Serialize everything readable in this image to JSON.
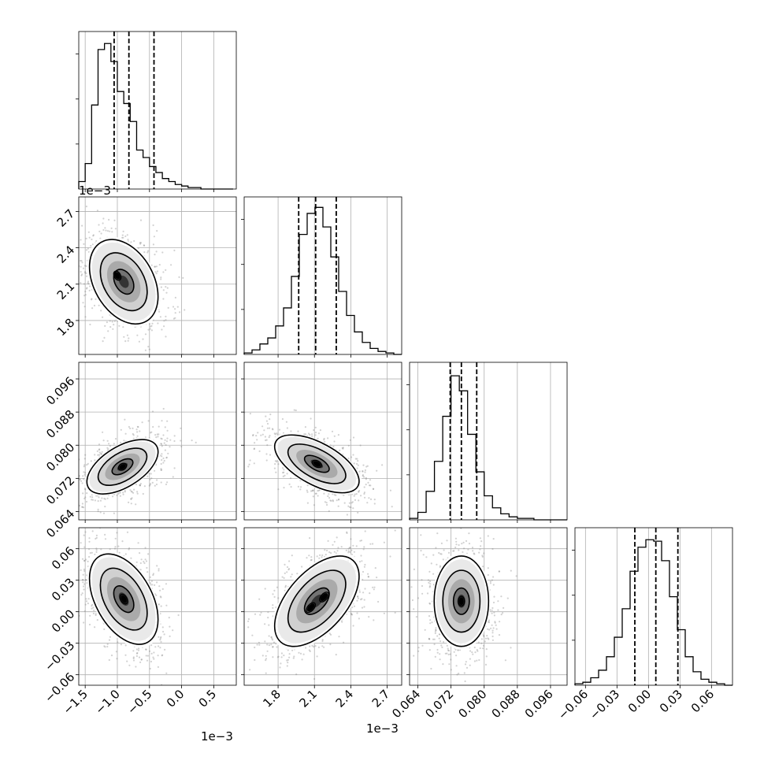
{
  "chart_data": {
    "type": "corner",
    "title": "",
    "grid": true,
    "histogram_color": "#000000",
    "scatter_color": "#7f7f7f",
    "quantiles": [
      0.16,
      0.5,
      0.84
    ],
    "parameters": [
      {
        "index": 0,
        "label": "",
        "offset_text": "1e−3",
        "range": [
          -1.6,
          0.85
        ],
        "ticks": [
          -1.5,
          -1.0,
          -0.5,
          0.0,
          0.5
        ],
        "tick_labels": [
          "−1.5",
          "−1.0",
          "−0.5",
          "0.0",
          "0.5"
        ],
        "quantile_values": [
          -1.05,
          -0.82,
          -0.43
        ],
        "hist_edges": [
          -1.6,
          -1.5,
          -1.4,
          -1.3,
          -1.2,
          -1.1,
          -1.0,
          -0.9,
          -0.8,
          -0.7,
          -0.6,
          -0.5,
          -0.4,
          -0.3,
          -0.2,
          -0.1,
          0.0,
          0.1,
          0.2,
          0.3,
          0.4,
          0.5,
          0.6,
          0.7,
          0.8
        ],
        "hist_counts": [
          0.05,
          0.17,
          0.56,
          0.93,
          0.97,
          0.85,
          0.65,
          0.57,
          0.45,
          0.26,
          0.21,
          0.15,
          0.11,
          0.07,
          0.05,
          0.03,
          0.02,
          0.01,
          0.01,
          0.0,
          0.0,
          0.0,
          0.0,
          0.0
        ]
      },
      {
        "index": 1,
        "label": "",
        "offset_text": "1e−3",
        "range": [
          1.52,
          2.82
        ],
        "ticks": [
          1.8,
          2.1,
          2.4,
          2.7
        ],
        "tick_labels": [
          "1.8",
          "2.1",
          "2.4",
          "2.7"
        ],
        "quantile_values": [
          1.97,
          2.11,
          2.28
        ],
        "hist_edges": [
          1.52,
          1.585,
          1.65,
          1.715,
          1.78,
          1.845,
          1.91,
          1.975,
          2.04,
          2.105,
          2.17,
          2.235,
          2.3,
          2.365,
          2.43,
          2.495,
          2.56,
          2.625,
          2.69,
          2.755,
          2.82
        ],
        "hist_counts": [
          0.01,
          0.03,
          0.07,
          0.11,
          0.19,
          0.31,
          0.52,
          0.8,
          0.94,
          0.98,
          0.85,
          0.65,
          0.42,
          0.26,
          0.15,
          0.08,
          0.04,
          0.02,
          0.01,
          0.0
        ]
      },
      {
        "index": 2,
        "label": "",
        "offset_text": "",
        "range": [
          0.062,
          0.1
        ],
        "ticks": [
          0.064,
          0.072,
          0.08,
          0.088,
          0.096
        ],
        "tick_labels": [
          "0.064",
          "0.072",
          "0.080",
          "0.088",
          "0.096"
        ],
        "quantile_values": [
          0.0718,
          0.0745,
          0.0782
        ],
        "hist_edges": [
          0.062,
          0.064,
          0.066,
          0.068,
          0.07,
          0.072,
          0.074,
          0.076,
          0.078,
          0.08,
          0.082,
          0.084,
          0.086,
          0.088,
          0.09,
          0.092,
          0.094,
          0.096,
          0.098,
          0.1
        ],
        "hist_counts": [
          0.01,
          0.05,
          0.19,
          0.39,
          0.69,
          0.96,
          0.86,
          0.57,
          0.32,
          0.16,
          0.08,
          0.04,
          0.02,
          0.01,
          0.01,
          0.0,
          0.0,
          0.0,
          0.0
        ]
      },
      {
        "index": 3,
        "label": "",
        "offset_text": "",
        "range": [
          -0.07,
          0.08
        ],
        "ticks": [
          -0.06,
          -0.03,
          0.0,
          0.03,
          0.06
        ],
        "tick_labels": [
          "−0.06",
          "−0.03",
          "0.00",
          "0.03",
          "0.06"
        ],
        "quantile_values": [
          -0.013,
          0.007,
          0.028
        ],
        "hist_edges": [
          -0.07,
          -0.0625,
          -0.055,
          -0.0475,
          -0.04,
          -0.0325,
          -0.025,
          -0.0175,
          -0.01,
          -0.0025,
          0.005,
          0.0125,
          0.02,
          0.0275,
          0.035,
          0.0425,
          0.05,
          0.0575,
          0.065,
          0.0725,
          0.08
        ],
        "hist_counts": [
          0.01,
          0.02,
          0.05,
          0.1,
          0.19,
          0.32,
          0.51,
          0.76,
          0.92,
          0.97,
          0.96,
          0.83,
          0.59,
          0.37,
          0.19,
          0.09,
          0.04,
          0.02,
          0.01,
          0.0
        ]
      }
    ],
    "pairs": [
      {
        "x": 0,
        "y": 1,
        "center": [
          -0.9,
          2.12
        ],
        "sd": [
          0.26,
          0.17
        ],
        "rho": -0.35,
        "peak_offsets": [
          [
            -0.1,
            0.05
          ]
        ]
      },
      {
        "x": 0,
        "y": 2,
        "center": [
          -0.92,
          0.0748
        ],
        "sd": [
          0.27,
          0.0032
        ],
        "rho": 0.55,
        "peak_offsets": [
          [
            0.0,
            0.0
          ]
        ]
      },
      {
        "x": 1,
        "y": 2,
        "center": [
          2.12,
          0.0755
        ],
        "sd": [
          0.17,
          0.0034
        ],
        "rho": -0.6,
        "peak_offsets": [
          [
            0.0,
            0.0
          ]
        ]
      },
      {
        "x": 0,
        "y": 3,
        "center": [
          -0.9,
          0.012
        ],
        "sd": [
          0.26,
          0.021
        ],
        "rho": -0.45,
        "peak_offsets": [
          [
            0.0,
            0.0
          ]
        ]
      },
      {
        "x": 1,
        "y": 3,
        "center": [
          2.12,
          0.01
        ],
        "sd": [
          0.17,
          0.021
        ],
        "rho": 0.55,
        "peak_offsets": [
          [
            -0.05,
            -0.006
          ],
          [
            0.06,
            0.004
          ]
        ]
      },
      {
        "x": 2,
        "y": 3,
        "center": [
          0.0745,
          0.01
        ],
        "sd": [
          0.0032,
          0.021
        ],
        "rho": 0.0,
        "peak_offsets": [
          [
            0.0,
            0.0
          ]
        ]
      }
    ],
    "contour_levels": [
      0.39,
      0.86,
      1.39
    ]
  }
}
